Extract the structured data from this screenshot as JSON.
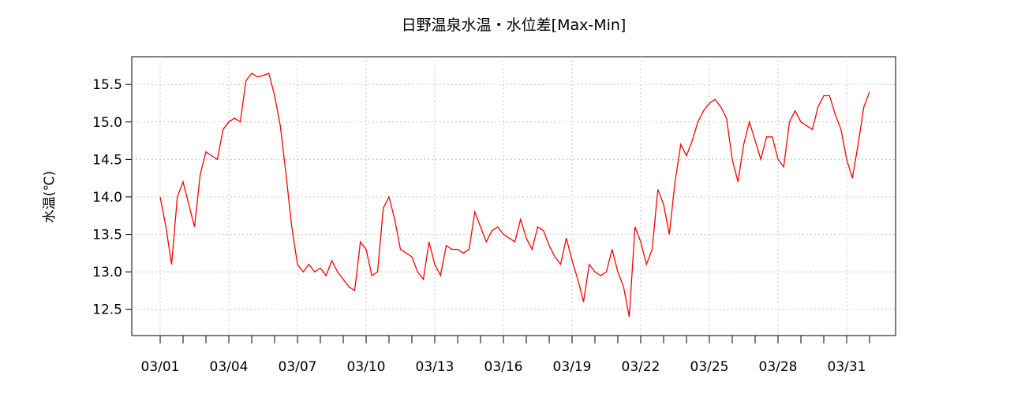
{
  "chart_data": {
    "type": "line",
    "title": "日野温泉水温・水位差[Max-Min]",
    "y_label": "水温(℃)",
    "color": "#ff0000",
    "grid": true,
    "categories": [
      "03/01",
      null,
      null,
      null,
      null,
      null,
      null,
      null,
      null,
      null,
      null,
      null,
      "03/04",
      null,
      null,
      null,
      null,
      null,
      null,
      null,
      null,
      null,
      null,
      null,
      "03/07",
      null,
      null,
      null,
      null,
      null,
      null,
      null,
      null,
      null,
      null,
      null,
      "03/10",
      null,
      null,
      null,
      null,
      null,
      null,
      null,
      null,
      null,
      null,
      null,
      "03/13",
      null,
      null,
      null,
      null,
      null,
      null,
      null,
      null,
      null,
      null,
      null,
      "03/16",
      null,
      null,
      null,
      null,
      null,
      null,
      null,
      null,
      null,
      null,
      null,
      "03/19",
      null,
      null,
      null,
      null,
      null,
      null,
      null,
      null,
      null,
      null,
      null,
      "03/22",
      null,
      null,
      null,
      null,
      null,
      null,
      null,
      null,
      null,
      null,
      null,
      "03/25",
      null,
      null,
      null,
      null,
      null,
      null,
      null,
      null,
      null,
      null,
      null,
      "03/28",
      null,
      null,
      null,
      null,
      null,
      null,
      null,
      null,
      null,
      null,
      null,
      "03/31",
      null,
      null,
      null,
      null
    ],
    "values": [
      14.0,
      13.6,
      13.1,
      14.0,
      14.2,
      13.9,
      13.6,
      14.3,
      14.6,
      14.55,
      14.5,
      14.9,
      15.0,
      15.05,
      15.0,
      15.55,
      15.65,
      15.6,
      15.62,
      15.65,
      15.35,
      14.95,
      14.3,
      13.6,
      13.1,
      13.0,
      13.1,
      13.0,
      13.05,
      12.95,
      13.15,
      13.0,
      12.9,
      12.8,
      12.75,
      13.4,
      13.3,
      12.95,
      13.0,
      13.85,
      14.0,
      13.7,
      13.3,
      13.25,
      13.2,
      13.0,
      12.9,
      13.4,
      13.1,
      12.95,
      13.35,
      13.3,
      13.3,
      13.25,
      13.3,
      13.8,
      13.6,
      13.4,
      13.55,
      13.6,
      13.5,
      13.45,
      13.4,
      13.7,
      13.45,
      13.3,
      13.6,
      13.55,
      13.35,
      13.2,
      13.1,
      13.45,
      13.15,
      12.9,
      12.6,
      13.1,
      13.0,
      12.95,
      13.0,
      13.3,
      13.0,
      12.8,
      12.4,
      13.6,
      13.4,
      13.1,
      13.3,
      14.1,
      13.9,
      13.5,
      14.2,
      14.7,
      14.55,
      14.75,
      15.0,
      15.15,
      15.25,
      15.3,
      15.2,
      15.05,
      14.5,
      14.2,
      14.7,
      15.0,
      14.75,
      14.5,
      14.8,
      14.8,
      14.5,
      14.4,
      15.0,
      15.15,
      15.0,
      14.95,
      14.9,
      15.2,
      15.35,
      15.35,
      15.1,
      14.9,
      14.5,
      14.25,
      14.7,
      15.2,
      15.4
    ],
    "ylim": [
      12.15,
      15.87
    ],
    "yticks": [
      12.5,
      {
        "value": 13,
        "label": "13.0"
      },
      13.5,
      {
        "value": 14,
        "label": "14.0"
      },
      14.5,
      {
        "value": 15,
        "label": "15.0"
      },
      15.5
    ]
  }
}
